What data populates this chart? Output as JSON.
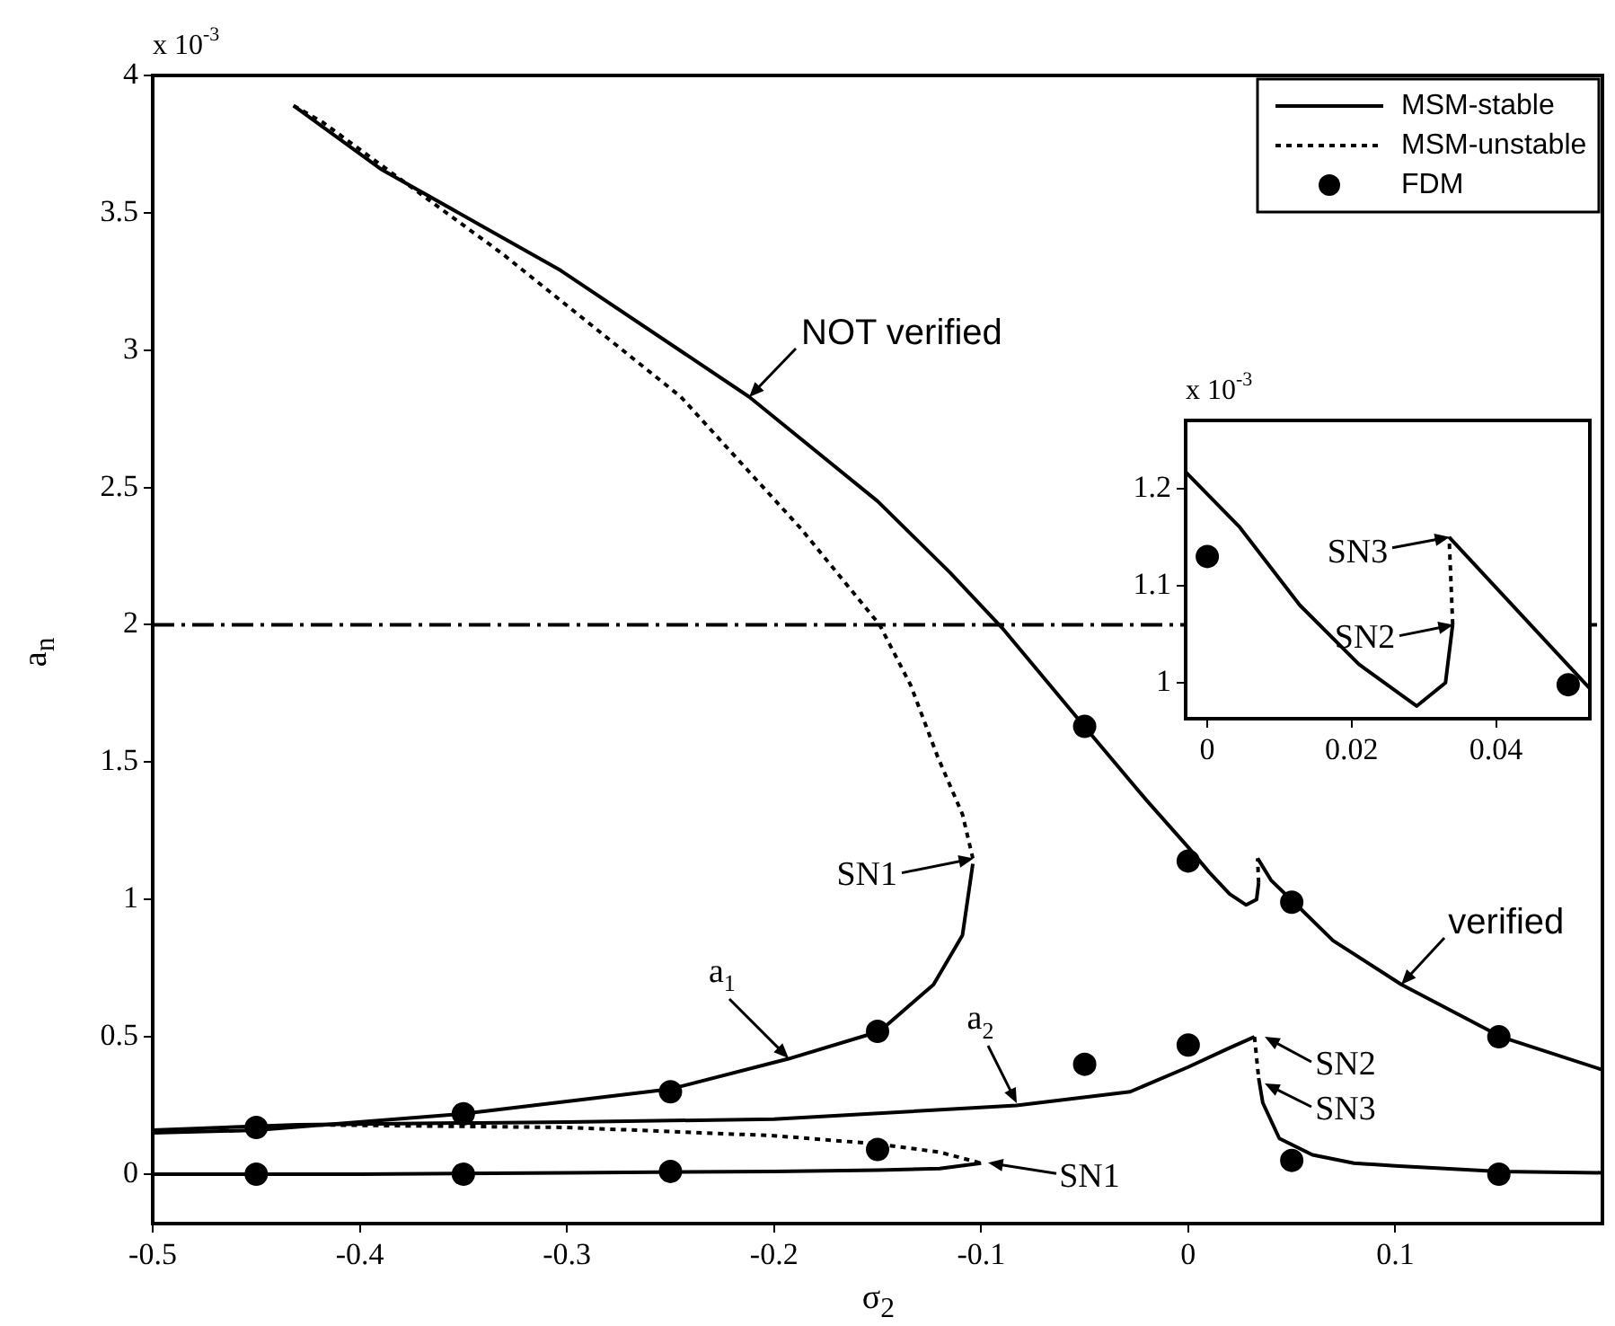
{
  "chart_data": [
    {
      "type": "line",
      "xlabel": "σ$_{2}$",
      "ylabel": "a$_{n}$",
      "xlim": [
        -0.5,
        0.2
      ],
      "xticks": [
        -0.5,
        -0.4,
        -0.3,
        -0.2,
        -0.1,
        0,
        0.1
      ],
      "ylim": [
        -0.18,
        4
      ],
      "yticks": [
        0,
        0.5,
        1,
        1.5,
        2,
        2.5,
        3,
        3.5,
        4
      ],
      "legend": "top right",
      "series": [
        {
          "name": "MSM-stable",
          "type": "line",
          "line_style": "solid",
          "color": "#000000",
          "x": [
            -0.432,
            -0.39,
            -0.303,
            -0.212,
            -0.15,
            -0.115,
            -0.09,
            -0.049,
            -0.02,
            0.0,
            0.01,
            0.02,
            0.028,
            0.033,
            0.034
          ],
          "values": [
            3.89,
            3.66,
            3.29,
            2.83,
            2.45,
            2.19,
            1.99,
            1.62,
            1.36,
            1.19,
            1.1,
            1.02,
            0.98,
            1.0,
            1.06
          ]
        },
        {
          "type": "line",
          "line_style": "solid",
          "color": "#000000",
          "x": [
            0.0335,
            0.04,
            0.051,
            0.07,
            0.103,
            0.151,
            0.2
          ],
          "values": [
            1.15,
            1.07,
            0.99,
            0.85,
            0.69,
            0.5,
            0.38
          ]
        },
        {
          "type": "line",
          "line_style": "solid",
          "color": "#000000",
          "x": [
            -0.5,
            -0.45,
            -0.35,
            -0.25,
            -0.193,
            -0.149,
            -0.123,
            -0.109,
            -0.104
          ],
          "values": [
            0.15,
            0.16,
            0.22,
            0.31,
            0.42,
            0.52,
            0.69,
            0.87,
            1.13
          ]
        },
        {
          "type": "line",
          "line_style": "solid",
          "color": "#000000",
          "x": [
            -0.5,
            -0.43,
            -0.3,
            -0.2,
            -0.083,
            -0.028,
            0.0,
            0.02,
            0.032
          ],
          "values": [
            0.16,
            0.18,
            0.19,
            0.2,
            0.25,
            0.3,
            0.39,
            0.46,
            0.5
          ]
        },
        {
          "type": "line",
          "line_style": "solid",
          "color": "#000000",
          "x": [
            0.034,
            0.036,
            0.044,
            0.06,
            0.08,
            0.1,
            0.15,
            0.2
          ],
          "values": [
            0.35,
            0.26,
            0.13,
            0.07,
            0.04,
            0.03,
            0.01,
            0.005
          ]
        },
        {
          "type": "line",
          "line_style": "solid",
          "color": "#000000",
          "x": [
            -0.5,
            -0.4,
            -0.3,
            -0.2,
            -0.15,
            -0.12,
            -0.1
          ],
          "values": [
            0.0,
            0.0,
            0.005,
            0.01,
            0.015,
            0.02,
            0.04
          ]
        },
        {
          "name": "MSM-unstable",
          "type": "line",
          "line_style": "dotted",
          "color": "#000000",
          "x": [
            -0.432,
            -0.418,
            -0.331,
            -0.245,
            -0.187,
            -0.149,
            -0.134,
            -0.121,
            -0.109,
            -0.104
          ],
          "values": [
            3.89,
            3.83,
            3.35,
            2.83,
            2.35,
            2.0,
            1.78,
            1.52,
            1.31,
            1.15
          ]
        },
        {
          "type": "line",
          "line_style": "dotted",
          "color": "#000000",
          "x": [
            0.034,
            0.0335
          ],
          "values": [
            1.06,
            1.15
          ]
        },
        {
          "type": "line",
          "line_style": "dotted",
          "color": "#000000",
          "x": [
            0.032,
            0.034
          ],
          "values": [
            0.5,
            0.35
          ]
        },
        {
          "type": "line",
          "line_style": "dotted",
          "color": "#000000",
          "x": [
            -0.43,
            -0.3,
            -0.2,
            -0.15,
            -0.12,
            -0.1
          ],
          "values": [
            0.18,
            0.17,
            0.14,
            0.11,
            0.08,
            0.04
          ]
        },
        {
          "name": "FDM",
          "type": "scatter",
          "marker": "circle",
          "color": "#000000",
          "x": [
            -0.45,
            -0.35,
            -0.25,
            -0.15,
            -0.05,
            0,
            0.05,
            0.15,
            -0.45,
            -0.35,
            -0.25,
            -0.15,
            -0.05,
            0,
            0.05,
            0.15
          ],
          "values": [
            0.17,
            0.22,
            0.3,
            0.52,
            1.63,
            1.14,
            0.99,
            0.5,
            0.0,
            0.0,
            0.01,
            0.09,
            0.4,
            0.47,
            0.05,
            0.0
          ]
        }
      ],
      "ref_lines": [
        {
          "axis": "y",
          "value": 2,
          "line_style": "dashdot",
          "color": "#000000"
        }
      ],
      "annotations": [
        "x 10$^{-3}$",
        {
          "text": "NOT verified",
          "x": -0.212,
          "y": 2.83
        },
        {
          "text": "verified",
          "x": 0.103,
          "y": 0.69
        },
        {
          "text": "SN1",
          "x": -0.104,
          "y": 1.15
        },
        {
          "text": "a$_{1}$",
          "x": -0.193,
          "y": 0.42
        },
        {
          "text": "a$_{2}$",
          "x": -0.083,
          "y": 0.26
        },
        {
          "text": "SN2",
          "x": 0.037,
          "y": 0.5
        },
        {
          "text": "SN3",
          "x": 0.037,
          "y": 0.33
        },
        {
          "text": "SN1",
          "x": -0.097,
          "y": 0.04
        }
      ]
    },
    {
      "type": "line",
      "xlim": [
        -0.003,
        0.053
      ],
      "xticks": [
        0,
        0.02,
        0.04
      ],
      "ylim": [
        0.963,
        1.27
      ],
      "yticks": [
        1,
        1.1,
        1.2
      ],
      "series": [
        {
          "type": "line",
          "line_style": "solid",
          "color": "#000000",
          "x": [
            -0.003,
            0.0045,
            0.0128,
            0.021,
            0.029,
            0.033,
            0.034
          ],
          "values": [
            1.217,
            1.16,
            1.08,
            1.019,
            0.976,
            1.0,
            1.06
          ]
        },
        {
          "type": "line",
          "line_style": "dotted",
          "color": "#000000",
          "x": [
            0.034,
            0.0335
          ],
          "values": [
            1.06,
            1.15
          ]
        },
        {
          "type": "line",
          "line_style": "solid",
          "color": "#000000",
          "x": [
            0.0335,
            0.053
          ],
          "values": [
            1.15,
            0.994
          ]
        },
        {
          "type": "scatter",
          "marker": "circle",
          "color": "#000000",
          "x": [
            0,
            0.05
          ],
          "values": [
            1.13,
            0.998
          ]
        }
      ],
      "annotations": [
        "x 10$^{-3}$",
        {
          "text": "SN3",
          "x": 0.0335,
          "y": 1.15
        },
        {
          "text": "SN2",
          "x": 0.034,
          "y": 1.06
        }
      ]
    }
  ]
}
